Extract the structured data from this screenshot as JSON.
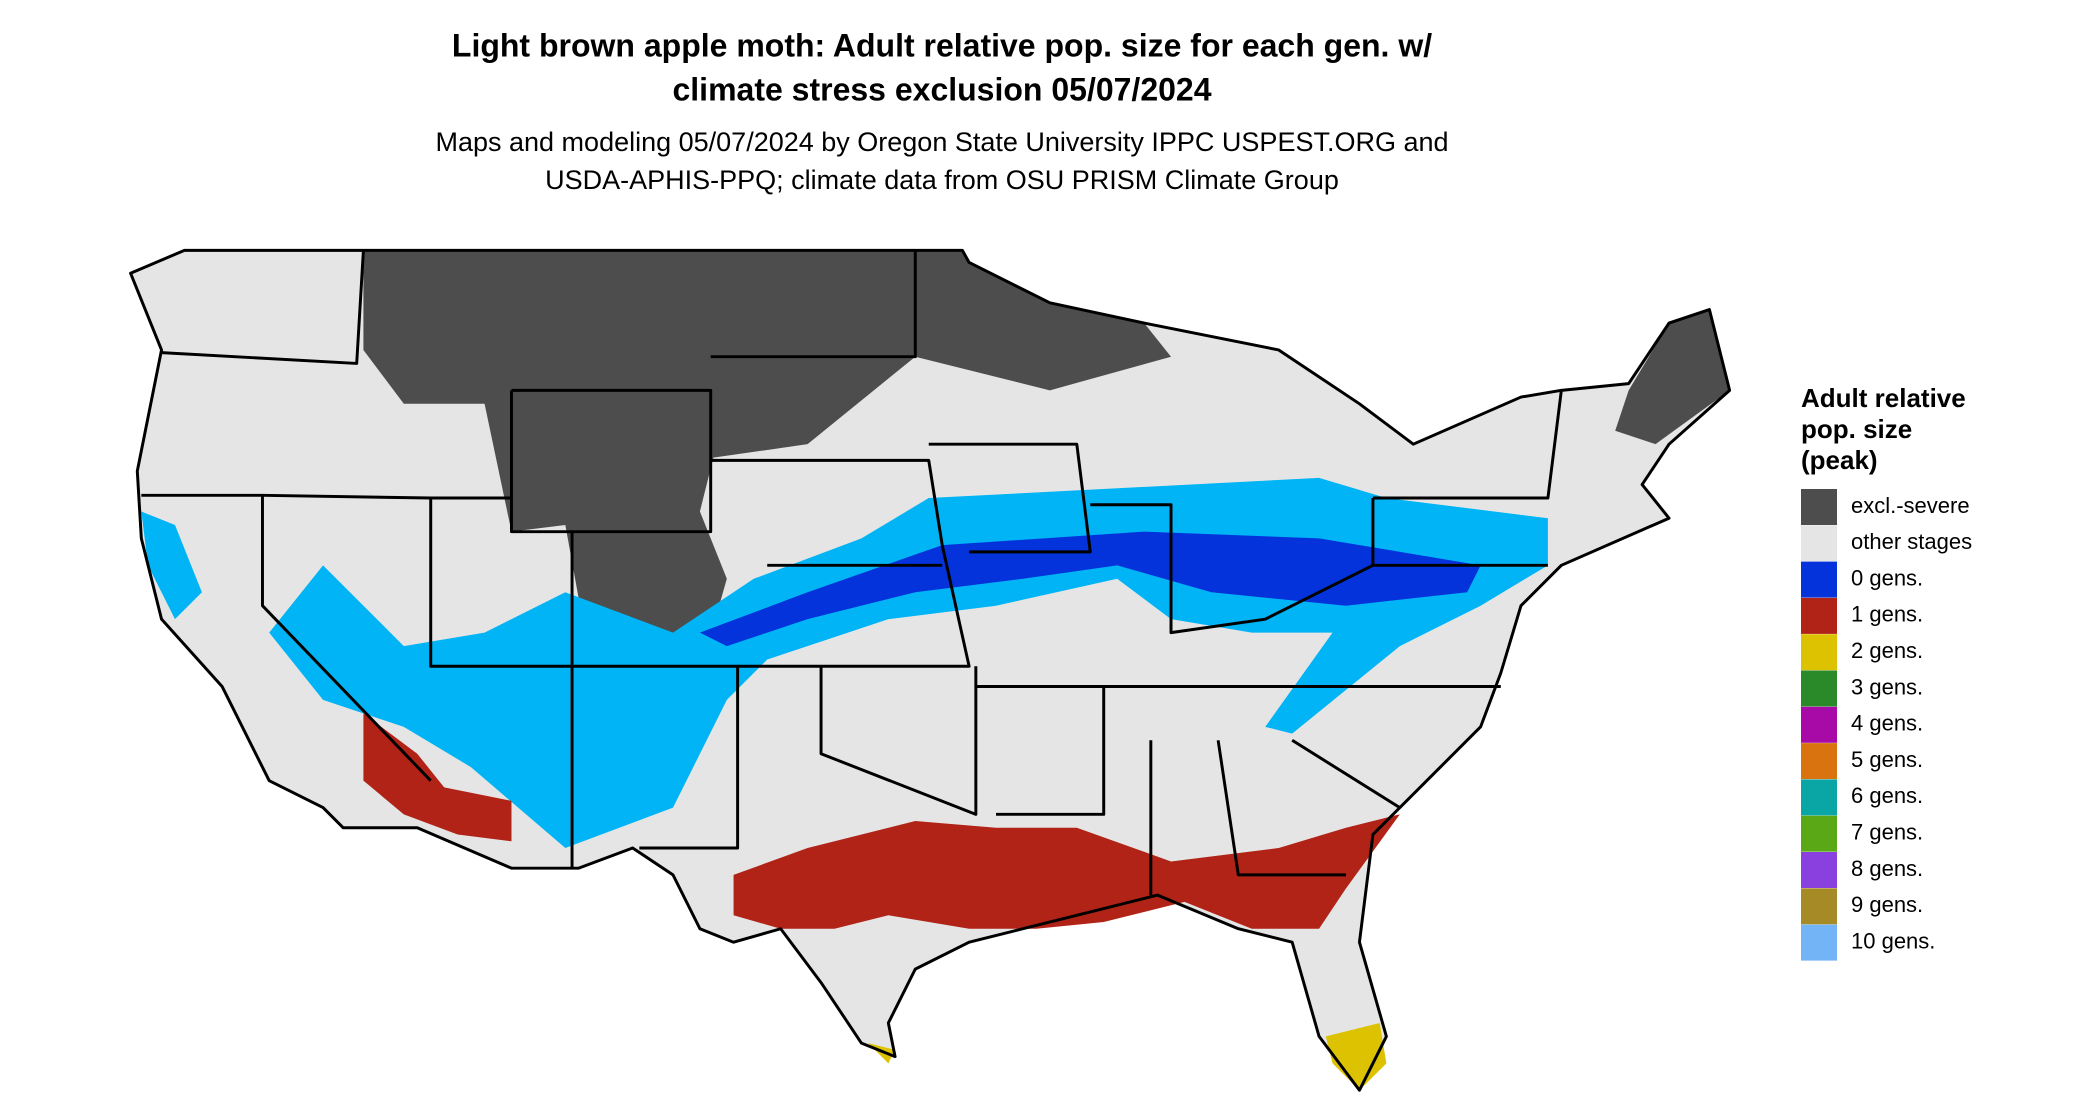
{
  "header": {
    "title": [
      "Light brown apple moth: Adult relative pop. size for each gen. w/",
      "climate stress exclusion 05/07/2024"
    ],
    "subtitle": [
      "Maps and modeling 05/07/2024 by Oregon State University IPPC USPEST.ORG and",
      "USDA-APHIS-PPQ; climate data from OSU PRISM Climate Group"
    ]
  },
  "legend": {
    "title": [
      "Adult relative",
      "pop. size",
      "(peak)"
    ],
    "items": [
      {
        "label": "excl.-severe",
        "color": "#4d4d4d"
      },
      {
        "label": "other stages",
        "color": "#e5e5e5"
      },
      {
        "label": "0 gens.",
        "color": "#0433db"
      },
      {
        "label": "1 gens.",
        "color": "#b22317"
      },
      {
        "label": "2 gens.",
        "color": "#dcc200"
      },
      {
        "label": "3 gens.",
        "color": "#2a8a2a"
      },
      {
        "label": "4 gens.",
        "color": "#a70aa7"
      },
      {
        "label": "5 gens.",
        "color": "#d9730f"
      },
      {
        "label": "6 gens.",
        "color": "#0aa5a5"
      },
      {
        "label": "7 gens.",
        "color": "#5aa815"
      },
      {
        "label": "8 gens.",
        "color": "#8a3fdf"
      },
      {
        "label": "9 gens.",
        "color": "#a58a25"
      },
      {
        "label": "10 gens.",
        "color": "#72b4f5"
      }
    ]
  }
}
